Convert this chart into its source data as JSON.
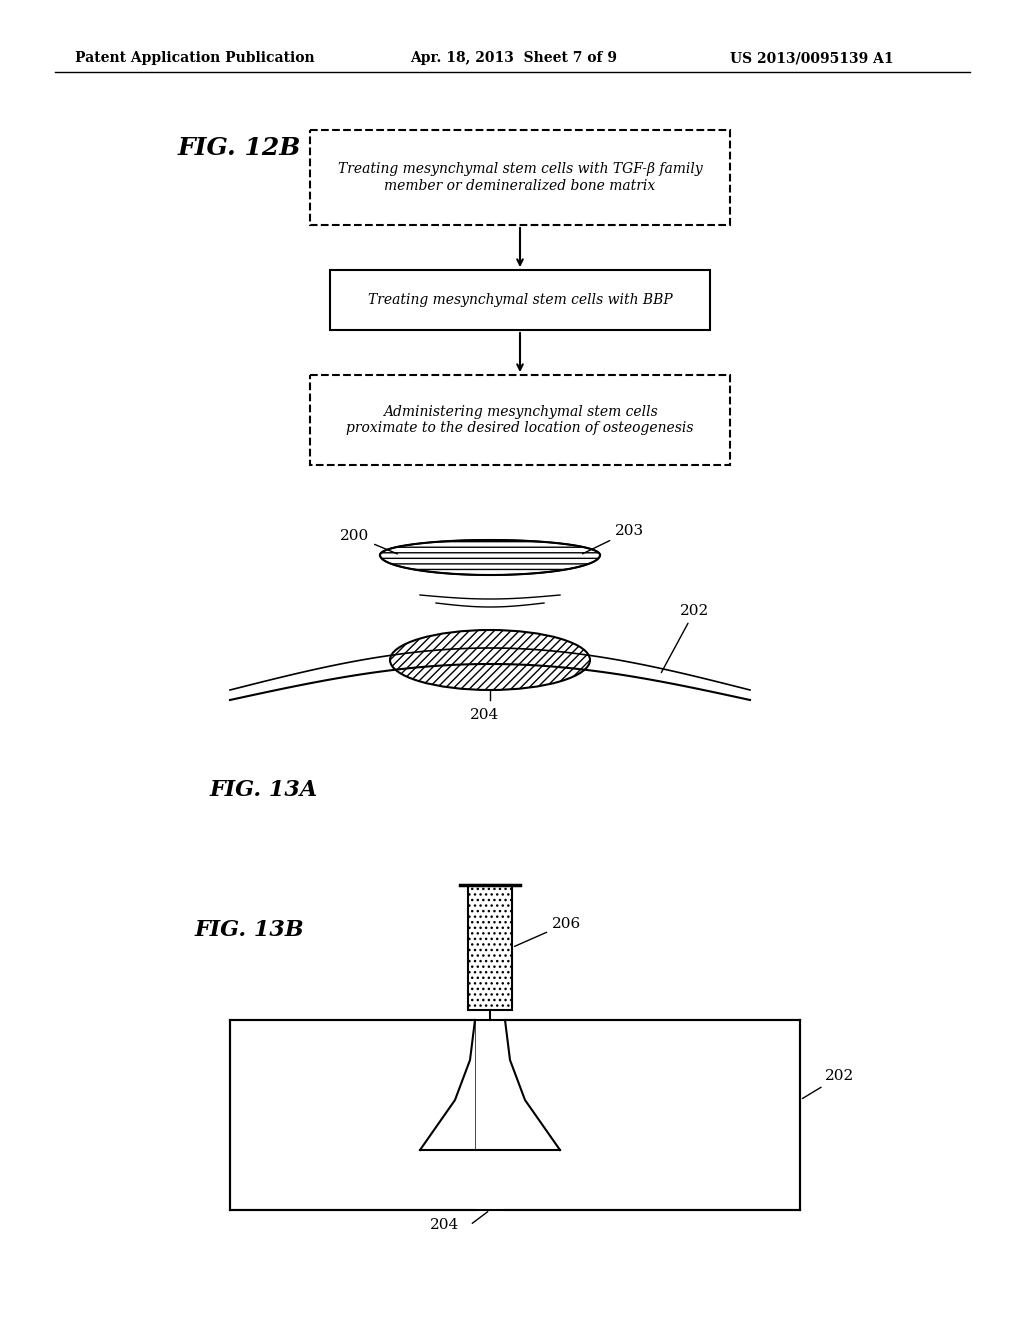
{
  "bg_color": "#ffffff",
  "header_left": "Patent Application Publication",
  "header_mid": "Apr. 18, 2013  Sheet 7 of 9",
  "header_right": "US 2013/0095139 A1",
  "fig12b_label": "FIG. 12B",
  "box1_text": "Treating mesynchymal stem cells with TGF-β family\nmember or demineralized bone matrix",
  "box2_text": "Treating mesynchymal stem cells with BBP",
  "box3_text": "Administering mesynchymal stem cells\nproximate to the desired location of osteogenesis",
  "fig13a_label": "FIG. 13A",
  "fig13b_label": "FIG. 13B",
  "label_200": "200",
  "label_202": "202",
  "label_203": "203",
  "label_204": "204",
  "label_206": "206"
}
